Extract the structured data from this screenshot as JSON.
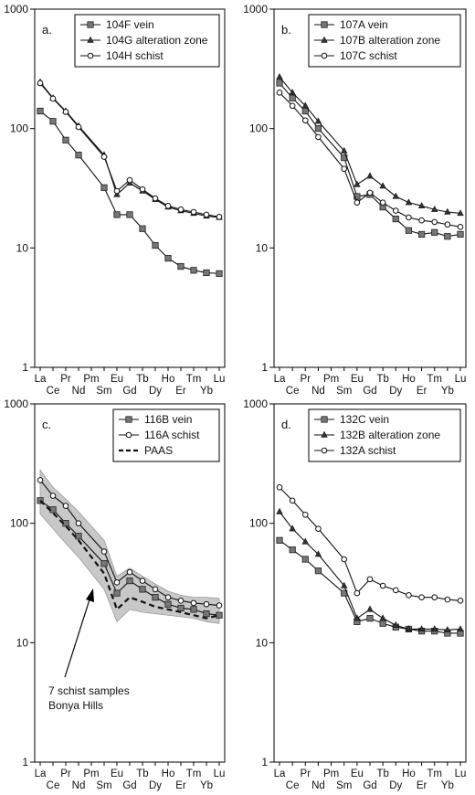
{
  "figure": {
    "ree_elements": [
      "La",
      "Ce",
      "Pr",
      "Nd",
      "Pm",
      "Sm",
      "Eu",
      "Gd",
      "Tb",
      "Dy",
      "Ho",
      "Er",
      "Tm",
      "Yb",
      "Lu"
    ],
    "y_tick_labels": [
      "1",
      "10",
      "100",
      "1000"
    ]
  },
  "chart_data": [
    {
      "type": "line",
      "panel_label": "a.",
      "title": "",
      "xlabel": "",
      "ylabel": "",
      "yscale": "log",
      "ylim": [
        1,
        1000
      ],
      "categories": [
        "La",
        "Ce",
        "Pr",
        "Nd",
        "Pm",
        "Sm",
        "Eu",
        "Gd",
        "Tb",
        "Dy",
        "Ho",
        "Er",
        "Tm",
        "Yb",
        "Lu"
      ],
      "legend_position": "top-right",
      "series": [
        {
          "name": "104F vein",
          "marker": "square",
          "values": [
            140,
            115,
            80,
            60,
            null,
            32,
            19,
            19,
            14.5,
            10.5,
            8.2,
            7,
            6.5,
            6.2,
            6.1
          ]
        },
        {
          "name": "104G alteration zone",
          "marker": "triangle",
          "values": [
            245,
            180,
            140,
            105,
            null,
            60,
            28,
            35,
            30,
            25.5,
            22,
            20.5,
            19.5,
            18.5,
            18
          ]
        },
        {
          "name": "104H schist",
          "marker": "circle",
          "values": [
            240,
            178,
            138,
            103,
            null,
            58,
            30,
            37,
            31,
            26,
            22.5,
            21,
            20,
            19,
            18.2
          ]
        }
      ]
    },
    {
      "type": "line",
      "panel_label": "b.",
      "title": "",
      "xlabel": "",
      "ylabel": "",
      "yscale": "log",
      "ylim": [
        1,
        1000
      ],
      "categories": [
        "La",
        "Ce",
        "Pr",
        "Nd",
        "Pm",
        "Sm",
        "Eu",
        "Gd",
        "Tb",
        "Dy",
        "Ho",
        "Er",
        "Tm",
        "Yb",
        "Lu"
      ],
      "legend_position": "top-right",
      "series": [
        {
          "name": "107A vein",
          "marker": "square",
          "values": [
            240,
            180,
            140,
            100,
            null,
            57,
            27,
            28,
            22,
            17.5,
            14,
            13,
            13.5,
            12.5,
            13
          ]
        },
        {
          "name": "107B alteration zone",
          "marker": "triangle",
          "values": [
            270,
            200,
            155,
            115,
            null,
            65,
            34,
            40,
            33,
            27,
            24,
            22.5,
            21,
            20,
            19.5
          ]
        },
        {
          "name": "107C schist",
          "marker": "circle",
          "values": [
            200,
            155,
            117,
            85,
            null,
            46,
            24,
            29,
            24,
            20.5,
            18,
            17,
            16.5,
            15.7,
            15
          ]
        }
      ]
    },
    {
      "type": "line",
      "panel_label": "c.",
      "title": "",
      "xlabel": "",
      "ylabel": "",
      "yscale": "log",
      "ylim": [
        1,
        1000
      ],
      "categories": [
        "La",
        "Ce",
        "Pr",
        "Nd",
        "Pm",
        "Sm",
        "Eu",
        "Gd",
        "Tb",
        "Dy",
        "Ho",
        "Er",
        "Tm",
        "Yb",
        "Lu"
      ],
      "legend_position": "top-right",
      "series": [
        {
          "name": "116B vein",
          "marker": "square",
          "values": [
            155,
            130,
            100,
            78,
            null,
            46,
            26,
            33,
            28,
            24,
            21,
            19.5,
            19,
            17.5,
            17
          ]
        },
        {
          "name": "116A schist",
          "marker": "circle",
          "values": [
            230,
            170,
            140,
            100,
            null,
            58,
            32,
            39,
            33,
            28,
            24,
            22.5,
            21.5,
            21,
            20.5
          ]
        },
        {
          "name": "PAAS",
          "marker": "none",
          "values": [
            155,
            122,
            95,
            72,
            null,
            38,
            19,
            24,
            22,
            20,
            19,
            18,
            17,
            16,
            17
          ]
        }
      ],
      "band": {
        "upper": [
          280,
          200,
          160,
          125,
          null,
          72,
          36,
          42,
          36,
          31,
          27,
          25,
          24,
          24,
          23.5
        ],
        "lower": [
          120,
          90,
          68,
          52,
          null,
          28,
          15,
          19,
          18,
          17.5,
          17,
          16.5,
          16,
          15,
          14.5
        ]
      },
      "annotation": {
        "line1": "7 schist samples",
        "line2": "Bonya Hills"
      }
    },
    {
      "type": "line",
      "panel_label": "d.",
      "title": "",
      "xlabel": "",
      "ylabel": "",
      "yscale": "log",
      "ylim": [
        1,
        1000
      ],
      "categories": [
        "La",
        "Ce",
        "Pr",
        "Nd",
        "Pm",
        "Sm",
        "Eu",
        "Gd",
        "Tb",
        "Dy",
        "Ho",
        "Er",
        "Tm",
        "Yb",
        "Lu"
      ],
      "legend_position": "top-right",
      "series": [
        {
          "name": "132C vein",
          "marker": "square",
          "values": [
            72,
            60,
            50,
            40,
            null,
            26,
            15,
            16,
            14.5,
            13.5,
            13,
            12.5,
            12.5,
            12,
            12
          ]
        },
        {
          "name": "132B alteration zone",
          "marker": "triangle",
          "values": [
            125,
            90,
            70,
            55,
            null,
            30,
            16,
            19,
            16,
            14,
            13,
            13,
            13,
            12.8,
            13
          ]
        },
        {
          "name": "132A schist",
          "marker": "circle",
          "values": [
            200,
            155,
            118,
            90,
            null,
            50,
            26,
            34,
            30,
            27.5,
            25,
            24,
            24,
            23,
            22.5
          ]
        }
      ]
    }
  ]
}
